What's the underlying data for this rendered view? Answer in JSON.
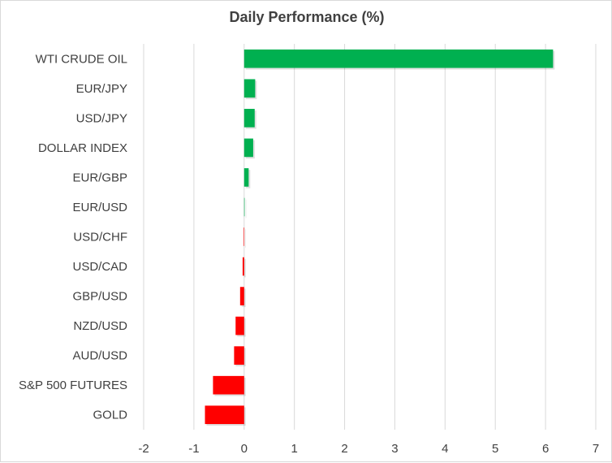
{
  "chart_data": {
    "type": "bar",
    "orientation": "horizontal",
    "title": "Daily Performance (%)",
    "xlabel": "",
    "ylabel": "",
    "categories": [
      "WTI CRUDE OIL",
      "EUR/JPY",
      "USD/JPY",
      "DOLLAR INDEX",
      "EUR/GBP",
      "EUR/USD",
      "USD/CHF",
      "USD/CAD",
      "GBP/USD",
      "NZD/USD",
      "AUD/USD",
      "S&P 500 FUTURES",
      "GOLD"
    ],
    "values": [
      6.15,
      0.22,
      0.21,
      0.18,
      0.09,
      0.0,
      -0.01,
      -0.03,
      -0.08,
      -0.17,
      -0.2,
      -0.62,
      -0.78
    ],
    "xlim": [
      -2,
      7
    ],
    "xticks": [
      -2,
      -1,
      0,
      1,
      2,
      3,
      4,
      5,
      6,
      7
    ],
    "grid": true,
    "legend": "none",
    "colors": {
      "positive": "#00b050",
      "negative": "#ff0000",
      "grid": "#d9d9d9",
      "text": "#404040"
    }
  }
}
